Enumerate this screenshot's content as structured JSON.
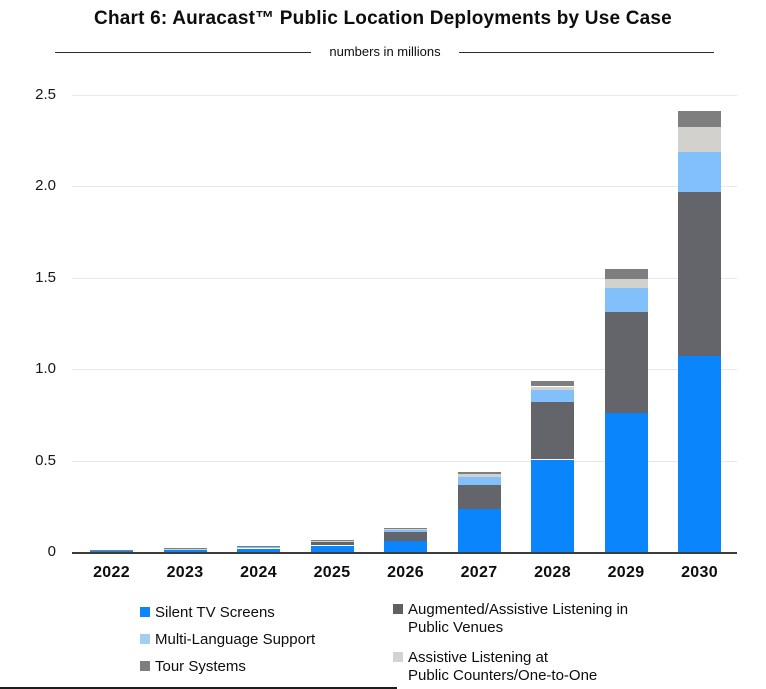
{
  "page": {
    "title": "Chart 6: Auracast™ Public Location Deployments by Use Case",
    "subtitle": "numbers  in millions"
  },
  "colors": {
    "silent_tv": "#0a85fb",
    "venues": "#63656a",
    "multi_language": "#81c0fb",
    "counters": "#d2d1cd",
    "tour": "#7e7e7e",
    "legend_multi_language": "#a5cdf2",
    "legend_tour": "#7e7e7e",
    "legend_venues": "#5f6064",
    "legend_counters": "#d4d3d0",
    "gridline": "#e9e9e9",
    "axis": "#3c3c3c"
  },
  "chart_data": {
    "type": "bar",
    "stacked": true,
    "title": "Chart 6: Auracast™ Public Location Deployments by Use Case",
    "units_label": "numbers  in millions",
    "xlabel": "",
    "ylabel": "",
    "ylim": [
      0,
      2.5
    ],
    "grid": "horizontal",
    "legend_position": "bottom",
    "categories": [
      "2022",
      "2023",
      "2024",
      "2025",
      "2026",
      "2027",
      "2028",
      "2029",
      "2030"
    ],
    "y_ticks": [
      {
        "value": 0.0,
        "label": "0"
      },
      {
        "value": 0.5,
        "label": "0.5"
      },
      {
        "value": 1.0,
        "label": "1.0"
      },
      {
        "value": 1.5,
        "label": "1.5"
      },
      {
        "value": 2.0,
        "label": "2.0"
      },
      {
        "value": 2.5,
        "label": "2.5"
      }
    ],
    "series": [
      {
        "name": "Silent TV Screens",
        "color_key": "silent_tv",
        "values": [
          0.006,
          0.009,
          0.018,
          0.035,
          0.062,
          0.235,
          0.503,
          0.76,
          1.071
        ]
      },
      {
        "name": "Augmented/Assistive Listening in Public Venues",
        "color_key": "venues",
        "values": [
          0.003,
          0.005,
          0.008,
          0.018,
          0.048,
          0.13,
          0.314,
          0.55,
          0.895
        ]
      },
      {
        "name": "Multi-Language Support",
        "color_key": "multi_language",
        "values": [
          0.002,
          0.003,
          0.004,
          0.006,
          0.014,
          0.045,
          0.072,
          0.131,
          0.219
        ]
      },
      {
        "name": "Assistive Listening at Public Counters/One-to-One",
        "color_key": "counters",
        "values": [
          0.001,
          0.001,
          0.001,
          0.002,
          0.003,
          0.016,
          0.015,
          0.051,
          0.138
        ]
      },
      {
        "name": "Tour Systems",
        "color_key": "tour",
        "values": [
          0.001,
          0.002,
          0.002,
          0.003,
          0.004,
          0.013,
          0.03,
          0.057,
          0.088
        ]
      }
    ],
    "totals": [
      0.013,
      0.02,
      0.033,
      0.064,
      0.131,
      0.439,
      0.934,
      1.549,
      2.411
    ]
  },
  "legend": {
    "columns": [
      {
        "items": [
          {
            "label": "Silent TV Screens",
            "color_key": "silent_tv"
          },
          {
            "label": "Multi-Language Support",
            "color_key": "legend_multi_language"
          },
          {
            "label": "Tour Systems",
            "color_key": "legend_tour"
          }
        ]
      },
      {
        "items": [
          {
            "label": "Augmented/Assistive Listening in\nPublic Venues",
            "color_key": "legend_venues"
          },
          {
            "label": "Assistive Listening at\nPublic Counters/One-to-One",
            "color_key": "legend_counters"
          }
        ]
      }
    ]
  }
}
